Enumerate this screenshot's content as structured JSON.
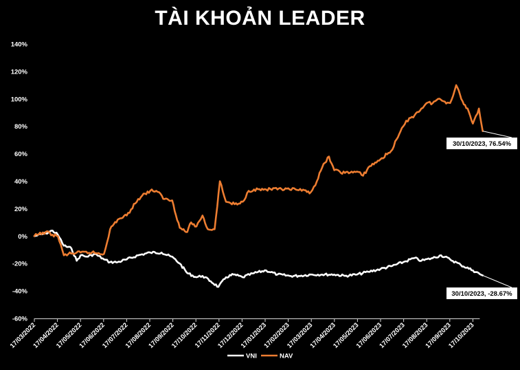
{
  "chart_data": {
    "type": "line",
    "title": "TÀI KHOẢN LEADER",
    "xlabel": "",
    "ylabel": "",
    "ylim": [
      -0.6,
      1.4
    ],
    "y_ticks": [
      "140%",
      "120%",
      "100%",
      "80%",
      "60%",
      "40%",
      "20%",
      "0%",
      "-20%",
      "-40%",
      "-60%"
    ],
    "x_ticks": [
      "17/03/2022",
      "17/04/2022",
      "17/05/2022",
      "17/06/2022",
      "17/07/2022",
      "17/08/2022",
      "17/09/2022",
      "17/10/2022",
      "17/11/2022",
      "17/12/2022",
      "17/01/2023",
      "17/02/2023",
      "17/03/2023",
      "17/04/2023",
      "17/05/2023",
      "17/06/2023",
      "17/07/2023",
      "17/08/2023",
      "17/09/2023",
      "17/10/2023"
    ],
    "grid": false,
    "legend_position": "bottom",
    "series": [
      {
        "name": "VNI",
        "color": "#ffffff",
        "x": [
          "17/03/2022",
          "01/04/2022",
          "10/04/2022",
          "17/04/2022",
          "25/04/2022",
          "05/05/2022",
          "12/05/2022",
          "17/05/2022",
          "25/05/2022",
          "05/06/2022",
          "17/06/2022",
          "25/06/2022",
          "05/07/2022",
          "17/07/2022",
          "01/08/2022",
          "17/08/2022",
          "01/09/2022",
          "17/09/2022",
          "25/09/2022",
          "05/10/2022",
          "17/10/2022",
          "25/10/2022",
          "05/11/2022",
          "15/11/2022",
          "25/11/2022",
          "05/12/2022",
          "17/12/2022",
          "01/01/2023",
          "17/01/2023",
          "01/02/2023",
          "17/02/2023",
          "01/03/2023",
          "17/03/2023",
          "01/04/2023",
          "17/04/2023",
          "01/05/2023",
          "17/05/2023",
          "01/06/2023",
          "17/06/2023",
          "01/07/2023",
          "17/07/2023",
          "01/08/2023",
          "10/08/2023",
          "25/08/2023",
          "05/09/2023",
          "17/09/2023",
          "01/10/2023",
          "17/10/2023",
          "30/10/2023"
        ],
        "values": [
          0.0,
          0.02,
          0.04,
          0.01,
          -0.07,
          -0.09,
          -0.18,
          -0.14,
          -0.15,
          -0.13,
          -0.17,
          -0.19,
          -0.19,
          -0.17,
          -0.14,
          -0.12,
          -0.12,
          -0.16,
          -0.2,
          -0.27,
          -0.3,
          -0.29,
          -0.33,
          -0.37,
          -0.3,
          -0.28,
          -0.3,
          -0.27,
          -0.25,
          -0.28,
          -0.29,
          -0.29,
          -0.28,
          -0.28,
          -0.28,
          -0.29,
          -0.28,
          -0.26,
          -0.24,
          -0.22,
          -0.19,
          -0.16,
          -0.18,
          -0.16,
          -0.14,
          -0.17,
          -0.21,
          -0.25,
          -0.2867
        ]
      },
      {
        "name": "NAV",
        "color": "#ed7d31",
        "x": [
          "17/03/2022",
          "01/04/2022",
          "10/04/2022",
          "17/04/2022",
          "25/04/2022",
          "01/05/2022",
          "17/05/2022",
          "01/06/2022",
          "17/06/2022",
          "25/06/2022",
          "05/07/2022",
          "17/07/2022",
          "01/08/2022",
          "10/08/2022",
          "17/08/2022",
          "25/08/2022",
          "05/09/2022",
          "15/09/2022",
          "25/09/2022",
          "05/10/2022",
          "10/10/2022",
          "17/10/2022",
          "25/10/2022",
          "01/11/2022",
          "10/11/2022",
          "17/11/2022",
          "25/11/2022",
          "01/12/2022",
          "10/12/2022",
          "17/12/2022",
          "25/12/2022",
          "01/01/2023",
          "17/01/2023",
          "01/02/2023",
          "17/02/2023",
          "25/02/2023",
          "05/03/2023",
          "17/03/2023",
          "25/03/2023",
          "01/04/2023",
          "10/04/2023",
          "17/04/2023",
          "01/05/2023",
          "17/05/2023",
          "25/05/2023",
          "01/06/2023",
          "17/06/2023",
          "01/07/2023",
          "10/07/2023",
          "17/07/2023",
          "25/07/2023",
          "01/08/2023",
          "10/08/2023",
          "17/08/2023",
          "25/08/2023",
          "01/09/2023",
          "10/09/2023",
          "17/09/2023",
          "25/09/2023",
          "05/10/2023",
          "10/10/2023",
          "17/10/2023",
          "25/10/2023",
          "30/10/2023"
        ],
        "values": [
          0.0,
          0.03,
          0.01,
          0.0,
          -0.14,
          -0.13,
          -0.12,
          -0.12,
          -0.13,
          0.05,
          0.12,
          0.15,
          0.27,
          0.31,
          0.33,
          0.33,
          0.27,
          0.26,
          0.06,
          0.03,
          0.1,
          0.07,
          0.15,
          0.05,
          0.05,
          0.4,
          0.25,
          0.24,
          0.23,
          0.25,
          0.33,
          0.34,
          0.34,
          0.34,
          0.34,
          0.34,
          0.33,
          0.32,
          0.4,
          0.5,
          0.58,
          0.48,
          0.46,
          0.47,
          0.44,
          0.5,
          0.56,
          0.62,
          0.72,
          0.8,
          0.86,
          0.88,
          0.93,
          0.97,
          0.97,
          1.0,
          0.98,
          0.97,
          1.1,
          0.96,
          0.93,
          0.82,
          0.93,
          0.7654
        ]
      }
    ],
    "annotations": [
      {
        "series": "NAV",
        "text": "30/10/2023, 76.54%"
      },
      {
        "series": "VNI",
        "text": "30/10/2023, -28.67%"
      }
    ]
  }
}
